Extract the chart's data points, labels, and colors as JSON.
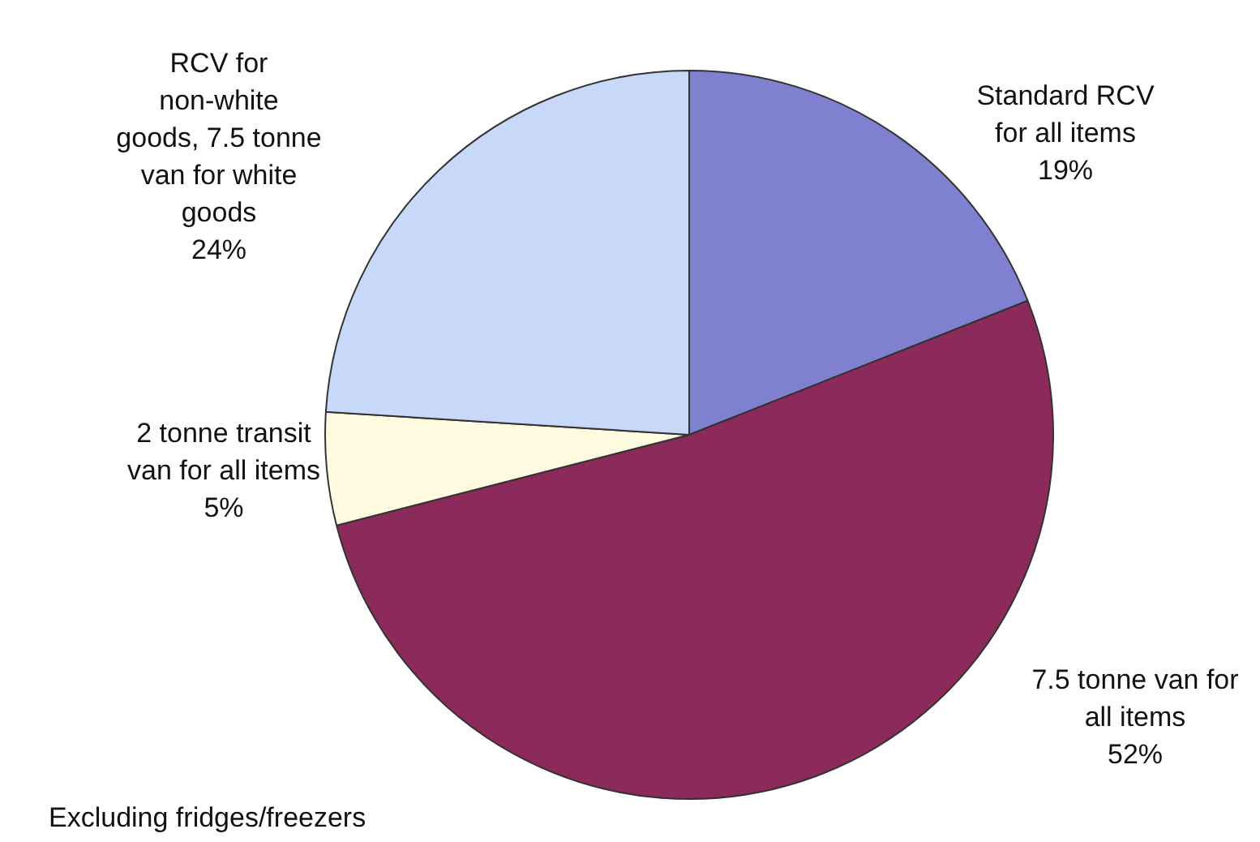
{
  "chart_data": {
    "type": "pie",
    "categories": [
      "Standard RCV for all items",
      "7.5 tonne van for all items",
      "2 tonne transit van for all items",
      "RCV for non-white goods, 7.5 tonne van for white goods"
    ],
    "values": [
      19,
      52,
      5,
      24
    ],
    "colors": [
      "#8080d0",
      "#8c2a5c",
      "#fffbe0",
      "#c8d8f8"
    ],
    "value_labels": [
      "19%",
      "52%",
      "5%",
      "24%"
    ],
    "annotations": [
      "Excluding fridges/freezers"
    ]
  }
}
